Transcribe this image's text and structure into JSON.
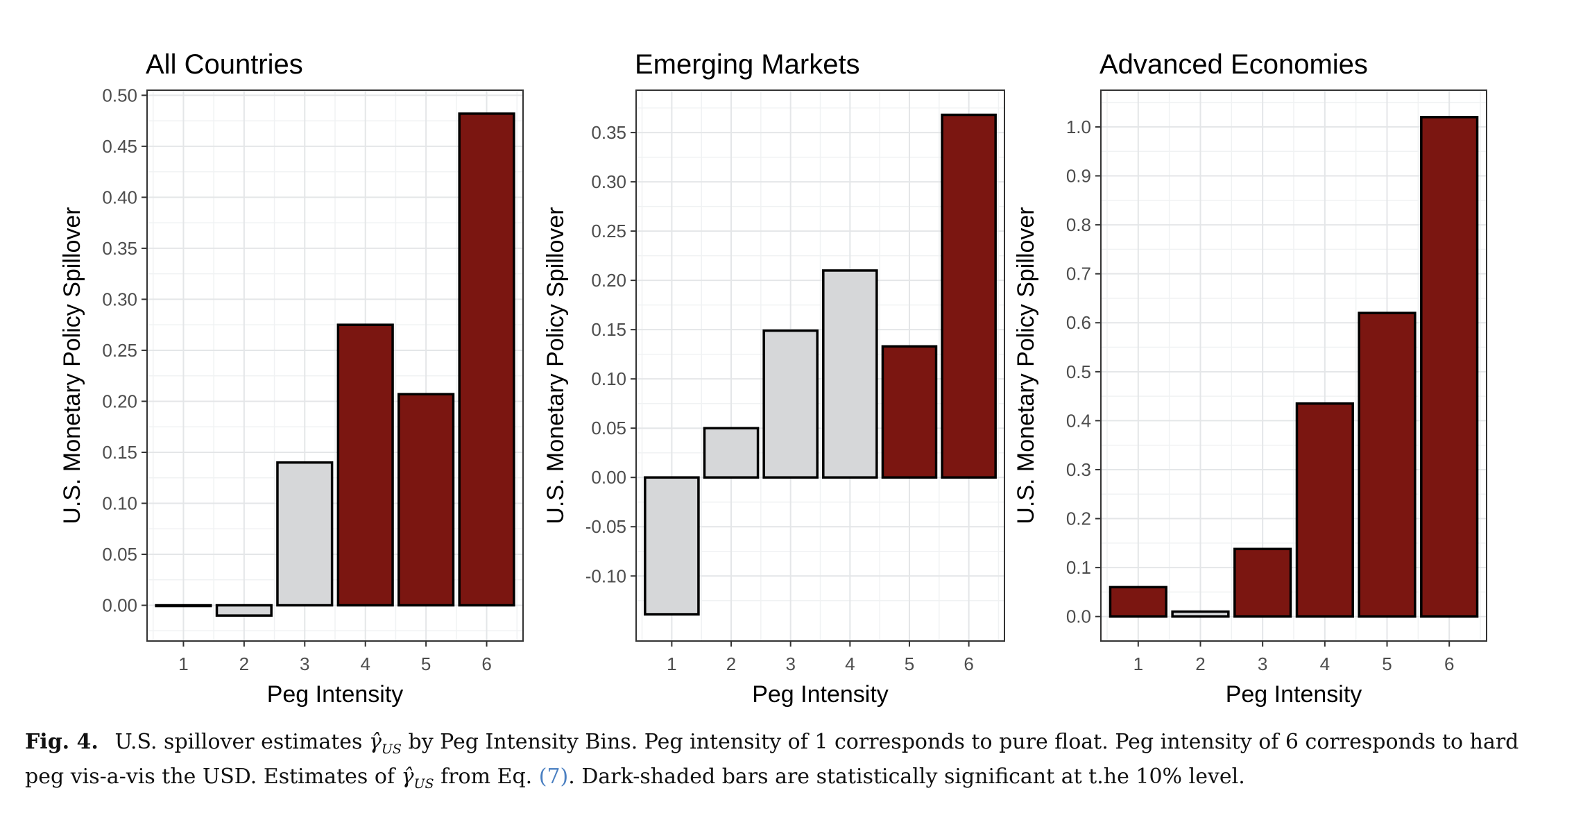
{
  "chart_data": [
    {
      "type": "bar",
      "title": "All Countries",
      "xlabel": "Peg Intensity",
      "ylabel": "U.S. Monetary Policy Spillover",
      "categories": [
        "1",
        "2",
        "3",
        "4",
        "5",
        "6"
      ],
      "values": [
        0.0,
        -0.01,
        0.14,
        0.275,
        0.207,
        0.482
      ],
      "significant": [
        true,
        false,
        false,
        true,
        true,
        true
      ],
      "yticks": [
        0.0,
        0.05,
        0.1,
        0.15,
        0.2,
        0.25,
        0.3,
        0.35,
        0.4,
        0.45,
        0.5
      ],
      "ytick_labels": [
        "0.00",
        "0.05",
        "0.10",
        "0.15",
        "0.20",
        "0.25",
        "0.30",
        "0.35",
        "0.40",
        "0.45",
        "0.50"
      ],
      "ylim": [
        -0.035,
        0.505
      ],
      "grid": true
    },
    {
      "type": "bar",
      "title": "Emerging Markets",
      "xlabel": "Peg Intensity",
      "ylabel": "U.S. Monetary Policy Spillover",
      "categories": [
        "1",
        "2",
        "3",
        "4",
        "5",
        "6"
      ],
      "values": [
        -0.139,
        0.05,
        0.149,
        0.21,
        0.133,
        0.368
      ],
      "significant": [
        false,
        false,
        false,
        false,
        true,
        true
      ],
      "yticks": [
        -0.1,
        -0.05,
        0.0,
        0.05,
        0.1,
        0.15,
        0.2,
        0.25,
        0.3,
        0.35
      ],
      "ytick_labels": [
        "-0.10",
        "-0.05",
        "0.00",
        "0.05",
        "0.10",
        "0.15",
        "0.20",
        "0.25",
        "0.30",
        "0.35"
      ],
      "ylim": [
        -0.166,
        0.393
      ],
      "grid": true
    },
    {
      "type": "bar",
      "title": "Advanced Economies",
      "xlabel": "Peg Intensity",
      "ylabel": "U.S. Monetary Policy Spillover",
      "categories": [
        "1",
        "2",
        "3",
        "4",
        "5",
        "6"
      ],
      "values": [
        0.06,
        0.01,
        0.138,
        0.435,
        0.62,
        1.02
      ],
      "significant": [
        true,
        false,
        true,
        true,
        true,
        true
      ],
      "yticks": [
        0.0,
        0.1,
        0.2,
        0.3,
        0.4,
        0.5,
        0.6,
        0.7,
        0.8,
        0.9,
        1.0
      ],
      "ytick_labels": [
        "0.0",
        "0.1",
        "0.2",
        "0.3",
        "0.4",
        "0.5",
        "0.6",
        "0.7",
        "0.8",
        "0.9",
        "1.0"
      ],
      "ylim": [
        -0.05,
        1.075
      ],
      "grid": true
    }
  ],
  "colors": {
    "significant": "#7b1611",
    "not_significant": "#d6d7d9",
    "bar_outline": "#000000",
    "grid_major": "#e4e6e8",
    "grid_minor": "#f0f2f3",
    "panel_border": "#333333",
    "tick_text": "#4d4d4d"
  },
  "caption": {
    "fig_label": "Fig. 4.",
    "line1_a": "U.S. spillover estimates",
    "gamma": "γ̂",
    "gamma_sub": "US",
    "line1_b": "by Peg Intensity Bins. Peg intensity of 1 corresponds to pure float. Peg intensity of 6 corresponds to hard peg vis-a-vis the USD. Estimates of",
    "line2_b": "from Eq.",
    "eq_ref": "(7)",
    "line2_c": ". Dark-shaded bars are statistically significant at t.he 10% level."
  }
}
